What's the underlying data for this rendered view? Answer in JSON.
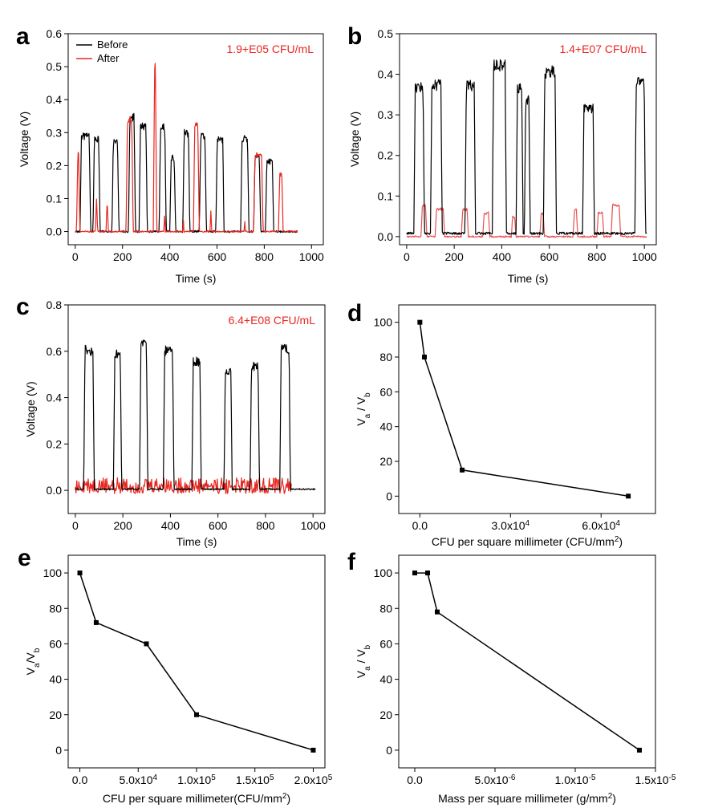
{
  "colors": {
    "before": "#000000",
    "after": "#e8261f",
    "after_b": "#e85050",
    "annotation": "#e8261f"
  },
  "chart_data": [
    {
      "panel": "a",
      "type": "line",
      "annotation": "1.9+E05 CFU/mL",
      "xlabel": "Time (s)",
      "ylabel": "Voltage (V)",
      "xlim": [
        -30,
        1050
      ],
      "ylim": [
        -0.04,
        0.6
      ],
      "xticks": [
        "0",
        "200",
        "400",
        "600",
        "800",
        "1000"
      ],
      "yticks": [
        "0.0",
        "0.1",
        "0.2",
        "0.3",
        "0.4",
        "0.5",
        "0.6"
      ],
      "legend": {
        "position": "top-left",
        "entries": [
          "Before",
          "After"
        ]
      },
      "series": [
        {
          "name": "Before",
          "pulses": [
            [
              20,
              65,
              0.3
            ],
            [
              75,
              105,
              0.29
            ],
            [
              155,
              185,
              0.28
            ],
            [
              225,
              255,
              0.36
            ],
            [
              270,
              305,
              0.33
            ],
            [
              355,
              385,
              0.33
            ],
            [
              400,
              425,
              0.23
            ],
            [
              455,
              485,
              0.31
            ],
            [
              525,
              555,
              0.3
            ],
            [
              595,
              630,
              0.29
            ],
            [
              700,
              735,
              0.29
            ],
            [
              755,
              785,
              0.24
            ],
            [
              805,
              840,
              0.22
            ]
          ]
        },
        {
          "name": "After",
          "pulses": [
            [
              5,
              20,
              0.25
            ],
            [
              85,
              95,
              0.12
            ],
            [
              130,
              140,
              0.12
            ],
            [
              215,
              245,
              0.35
            ],
            [
              330,
              345,
              0.53
            ],
            [
              375,
              382,
              0.1
            ],
            [
              455,
              460,
              0.1
            ],
            [
              500,
              525,
              0.34
            ],
            [
              570,
              578,
              0.1
            ],
            [
              715,
              720,
              0.1
            ],
            [
              755,
              795,
              0.24
            ],
            [
              860,
              880,
              0.18
            ]
          ]
        }
      ]
    },
    {
      "panel": "b",
      "type": "line",
      "annotation": "1.4+E07 CFU/mL",
      "xlabel": "Time (s)",
      "ylabel": "Voltage (V)",
      "xlim": [
        -30,
        1050
      ],
      "ylim": [
        -0.02,
        0.5
      ],
      "xticks": [
        "0",
        "200",
        "400",
        "600",
        "800",
        "1000"
      ],
      "yticks": [
        "0.0",
        "0.1",
        "0.2",
        "0.3",
        "0.4",
        "0.5"
      ],
      "series": [
        {
          "name": "Before",
          "pulses": [
            [
              30,
              75,
              0.37
            ],
            [
              100,
              150,
              0.38
            ],
            [
              245,
              290,
              0.38
            ],
            [
              360,
              420,
              0.43
            ],
            [
              460,
              490,
              0.37
            ],
            [
              495,
              520,
              0.34
            ],
            [
              575,
              630,
              0.41
            ],
            [
              740,
              790,
              0.32
            ],
            [
              960,
              1005,
              0.39
            ]
          ]
        },
        {
          "name": "After",
          "pulses": [
            [
              60,
              85,
              0.08
            ],
            [
              120,
              160,
              0.07
            ],
            [
              230,
              260,
              0.07
            ],
            [
              320,
              350,
              0.06
            ],
            [
              440,
              460,
              0.05
            ],
            [
              560,
              580,
              0.06
            ],
            [
              700,
              720,
              0.07
            ],
            [
              800,
              830,
              0.06
            ],
            [
              860,
              900,
              0.08
            ]
          ]
        }
      ]
    },
    {
      "panel": "c",
      "type": "line",
      "annotation": "6.4+E08 CFU/mL",
      "xlabel": "Time (s)",
      "ylabel": "Voltage (V)",
      "xlim": [
        -30,
        1050
      ],
      "ylim": [
        -0.1,
        0.8
      ],
      "xticks": [
        "0",
        "200",
        "400",
        "600",
        "800",
        "1000"
      ],
      "yticks": [
        "0.0",
        "0.2",
        "0.4",
        "0.6",
        "0.8"
      ],
      "series": [
        {
          "name": "Before",
          "pulses": [
            [
              35,
              80,
              0.62
            ],
            [
              160,
              195,
              0.6
            ],
            [
              270,
              305,
              0.65
            ],
            [
              370,
              415,
              0.62
            ],
            [
              490,
              530,
              0.57
            ],
            [
              625,
              660,
              0.53
            ],
            [
              735,
              775,
              0.55
            ],
            [
              860,
              905,
              0.63
            ]
          ]
        },
        {
          "name": "After",
          "noise": {
            "xmin": 0,
            "xmax": 910,
            "mean": 0.02,
            "amp": 0.035
          }
        }
      ]
    },
    {
      "panel": "d",
      "type": "scatter",
      "xlabel": "CFU per square millimeter (CFU/mm²)",
      "ylabel": "Va / Vb",
      "xlim": [
        -7000,
        78000
      ],
      "ylim": [
        -10,
        110
      ],
      "xticks": [
        "0.0",
        "3.0x10⁴",
        "6.0x10⁴"
      ],
      "yticks": [
        "0",
        "20",
        "40",
        "60",
        "80",
        "100"
      ],
      "x": [
        0,
        1500,
        14000,
        69000
      ],
      "y": [
        100,
        80,
        15,
        0
      ]
    },
    {
      "panel": "e",
      "type": "scatter",
      "xlabel": "CFU per square millimeter(CFU/mm²)",
      "ylabel": "Va/Vb",
      "xlim": [
        -10000,
        210000
      ],
      "ylim": [
        -10,
        110
      ],
      "xticks": [
        "0.0",
        "5.0x10⁴",
        "1.0x10⁵",
        "1.5x10⁵",
        "2.0x10⁵"
      ],
      "yticks": [
        "0",
        "20",
        "40",
        "60",
        "80",
        "100"
      ],
      "x": [
        0,
        14000,
        57000,
        100000,
        200000
      ],
      "y": [
        100,
        72,
        60,
        20,
        0
      ]
    },
    {
      "panel": "f",
      "type": "scatter",
      "xlabel": "Mass per square millimeter (g/mm²)",
      "ylabel": "Va / Vb",
      "xlim": [
        -1e-06,
        1.5e-05
      ],
      "ylim": [
        -10,
        110
      ],
      "xticks": [
        "0.0",
        "5.0x10⁻⁶",
        "1.0x10⁻⁵",
        "1.5x10⁻⁵"
      ],
      "yticks": [
        "0",
        "20",
        "40",
        "60",
        "80",
        "100"
      ],
      "x": [
        0,
        8e-07,
        1.4e-06,
        1.4e-05
      ],
      "y": [
        100,
        100,
        78,
        0
      ]
    }
  ]
}
